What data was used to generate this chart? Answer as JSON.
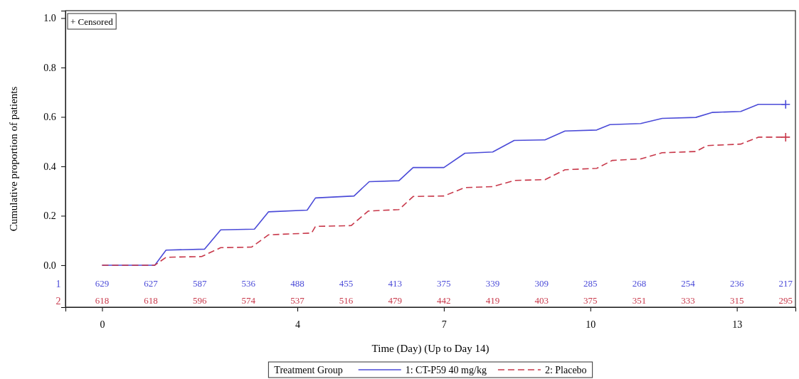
{
  "chart_data": {
    "type": "line",
    "xlabel": "Time (Day) (Up to Day 14)",
    "ylabel": "Cumulative proportion of patients",
    "legend_title": "Treatment Group",
    "legend": "bottom",
    "xlim": [
      -0.75,
      14.2
    ],
    "ylim": [
      -0.17,
      1.03
    ],
    "xticks": [
      0,
      4,
      7,
      10,
      13
    ],
    "yticks": [
      {
        "value": 0,
        "label": "0.0"
      },
      {
        "value": 0.2,
        "label": "0.2"
      },
      {
        "value": 0.4,
        "label": "0.4"
      },
      {
        "value": 0.6,
        "label": "0.6"
      },
      {
        "value": 0.8,
        "label": "0.8"
      },
      {
        "value": 1,
        "label": "1.0"
      }
    ],
    "series": [
      {
        "name": "1: CT-P59 40 mg/kg",
        "color": "#4b4bd8",
        "line_style": "solid",
        "x": [
          0,
          1.08,
          1.31,
          2.1,
          2.43,
          3.12,
          3.41,
          4.2,
          4.37,
          5.16,
          5.47,
          6.08,
          6.37,
          7.0,
          7.43,
          8.0,
          8.44,
          9.07,
          9.48,
          10.13,
          10.4,
          11.03,
          11.47,
          12.16,
          12.49,
          13.08,
          13.44,
          14
        ],
        "values": [
          0,
          0,
          0.061,
          0.065,
          0.143,
          0.146,
          0.216,
          0.223,
          0.272,
          0.28,
          0.338,
          0.342,
          0.395,
          0.395,
          0.453,
          0.458,
          0.505,
          0.507,
          0.543,
          0.547,
          0.569,
          0.573,
          0.594,
          0.598,
          0.618,
          0.622,
          0.651,
          0.651
        ]
      },
      {
        "name": "2: Placebo",
        "color": "#c8384a",
        "line_style": "dashed",
        "x": [
          0,
          1.08,
          1.31,
          2.04,
          2.43,
          3.06,
          3.41,
          4.29,
          4.37,
          5.1,
          5.45,
          6.08,
          6.37,
          7.0,
          7.43,
          8.0,
          8.45,
          9.07,
          9.48,
          10.13,
          10.45,
          11.03,
          11.47,
          12.16,
          12.39,
          13.08,
          13.44,
          14
        ],
        "values": [
          0,
          0,
          0.032,
          0.035,
          0.071,
          0.073,
          0.123,
          0.13,
          0.157,
          0.16,
          0.219,
          0.225,
          0.278,
          0.28,
          0.314,
          0.318,
          0.343,
          0.346,
          0.386,
          0.392,
          0.424,
          0.43,
          0.455,
          0.46,
          0.484,
          0.49,
          0.518,
          0.518
        ]
      },
      {
        "type": "scatter",
        "marker": "cross",
        "color": "#4b4bd8",
        "x": [
          14
        ],
        "values": [
          0.651
        ]
      },
      {
        "type": "scatter",
        "marker": "cross",
        "color": "#c8384a",
        "x": [
          14
        ],
        "values": [
          0.518
        ]
      }
    ],
    "annotations": [
      "+ Censored",
      "1",
      "2",
      "629",
      "627",
      "587",
      "536",
      "488",
      "455",
      "413",
      "375",
      "339",
      "309",
      "285",
      "268",
      "254",
      "236",
      "217",
      "618",
      "618",
      "596",
      "574",
      "537",
      "516",
      "479",
      "442",
      "419",
      "403",
      "375",
      "351",
      "333",
      "315",
      "295"
    ]
  }
}
